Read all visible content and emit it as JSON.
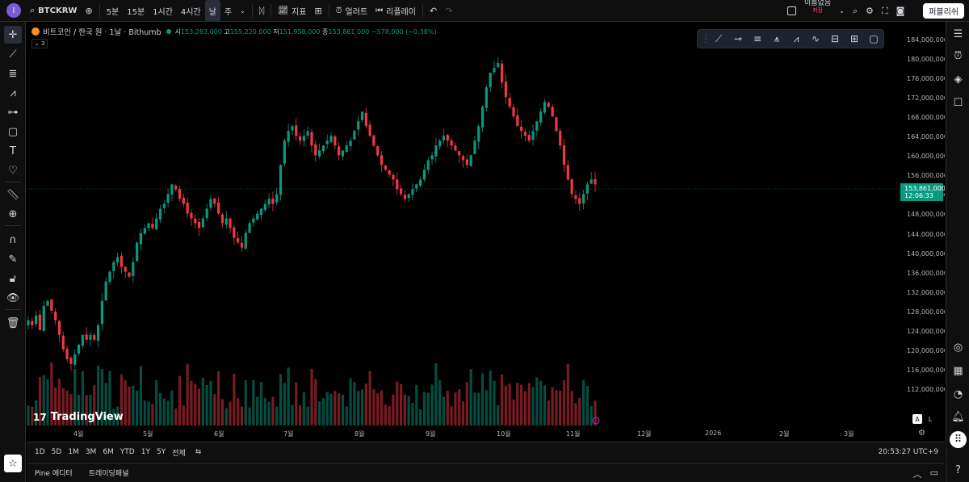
{
  "topbar": {
    "avatar_letter": "I",
    "symbol": "BTCKRW",
    "timeframes": [
      "5분",
      "15분",
      "1시간",
      "4시간",
      "날",
      "주"
    ],
    "active_timeframe_index": 4,
    "indicators_label": "지표",
    "alert_label": "얼러트",
    "replay_label": "리플레이",
    "layout_name": "이름없음",
    "layout_status": "저장",
    "publish_label": "퍼블리쉬"
  },
  "legend": {
    "title": "비트코인 / 한국 원 · 1날 · Bithumb",
    "ohlc": [
      {
        "k": "시",
        "v": "153,283,000"
      },
      {
        "k": "고",
        "v": "155,220,000"
      },
      {
        "k": "저",
        "v": "151,958,000"
      },
      {
        "k": "종",
        "v": "153,861,000"
      }
    ],
    "change": "−578,000 (−0.38%)",
    "collapse": "3"
  },
  "watermark": "TradingView",
  "current_price": {
    "price": "153,861,000",
    "countdown": "12:06:33"
  },
  "price_scale": [
    "184,000,000",
    "180,000,000",
    "176,000,000",
    "172,000,000",
    "168,000,000",
    "164,000,000",
    "160,000,000",
    "156,000,000",
    "152,000,000",
    "148,000,000",
    "144,000,000",
    "140,000,000",
    "136,000,000",
    "132,000,000",
    "128,000,000",
    "124,000,000",
    "120,000,000",
    "116,000,000",
    "112,000,000"
  ],
  "time_axis": [
    "4월",
    "5월",
    "6월",
    "7월",
    "8월",
    "9월",
    "10월",
    "11월",
    "12월",
    "2026",
    "2월",
    "3월"
  ],
  "range_buttons": [
    "1D",
    "5D",
    "1M",
    "3M",
    "6M",
    "YTD",
    "1Y",
    "5Y",
    "전체"
  ],
  "clock": "20:53:27 UTC+9",
  "bottom_tabs": [
    "Pine 에디터",
    "트레이딩패널"
  ],
  "colors": {
    "up": "#089981",
    "down": "#f23645",
    "bg": "#000000",
    "panel": "#0f0f0f"
  },
  "chart_data": {
    "type": "candlestick",
    "currency": "KRW",
    "ylim": [
      110000000,
      186000000
    ],
    "x_range": [
      "Mar",
      "Mar next year"
    ],
    "closes_millions": [
      126,
      125,
      127,
      124,
      129,
      130,
      128,
      126,
      123,
      120,
      118,
      117,
      119,
      121,
      123,
      122,
      123,
      122,
      125,
      130,
      134,
      136,
      138,
      139,
      137,
      136,
      135,
      138,
      142,
      144,
      145,
      146,
      145,
      147,
      149,
      150,
      152,
      154,
      153,
      151,
      150,
      148,
      147,
      146,
      145,
      147,
      149,
      151,
      150,
      148,
      146,
      147,
      145,
      143,
      142,
      141,
      144,
      146,
      147,
      148,
      149,
      150,
      151,
      150,
      152,
      158,
      163,
      165,
      166,
      164,
      163,
      164,
      165,
      162,
      160,
      161,
      162,
      163,
      164,
      162,
      160,
      161,
      162,
      163,
      165,
      167,
      169,
      166,
      164,
      162,
      160,
      158,
      157,
      156,
      155,
      153,
      152,
      151,
      152,
      153,
      154,
      155,
      157,
      159,
      160,
      162,
      163,
      164,
      163,
      162,
      161,
      160,
      159,
      158,
      160,
      163,
      166,
      170,
      174,
      177,
      178,
      179,
      175,
      172,
      170,
      168,
      166,
      165,
      164,
      163,
      165,
      167,
      169,
      171,
      170,
      168,
      165,
      162,
      158,
      155,
      152,
      151,
      150,
      152,
      154,
      155,
      154
    ]
  }
}
